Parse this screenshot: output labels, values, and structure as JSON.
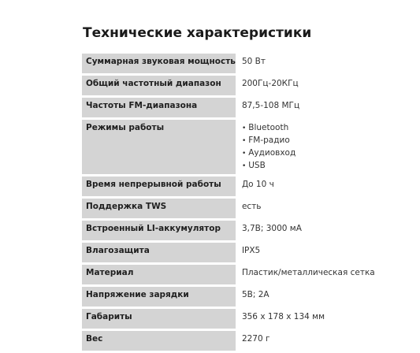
{
  "title": "Технические характеристики",
  "specs": [
    {
      "key": "Суммарная звуковая мощность",
      "value": "50 Вт"
    },
    {
      "key": "Общий частотный диапазон",
      "value": "200Гц-20КГц"
    },
    {
      "key": "Частоты FM-диапазона",
      "value": "87,5-108 МГц"
    },
    {
      "key": "Режимы работы",
      "list": [
        "Bluetooth",
        "FM-радио",
        "Аудиовход",
        "USB"
      ]
    },
    {
      "key": "Время непрерывной работы",
      "value": "До 10 ч"
    },
    {
      "key": "Поддержка TWS",
      "value": "есть"
    },
    {
      "key": "Встроенный LI-аккумулятор",
      "value": "3,7В; 3000 мА"
    },
    {
      "key": "Влагозащита",
      "value": "IPX5"
    },
    {
      "key": "Материал",
      "value": "Пластик/металлическая сетка"
    },
    {
      "key": "Напряжение зарядки",
      "value": "5В; 2А"
    },
    {
      "key": "Габариты",
      "value": "356 х 178 х 134 мм"
    },
    {
      "key": "Вес",
      "value": "2270 г"
    }
  ],
  "bullet_glyph": "•"
}
